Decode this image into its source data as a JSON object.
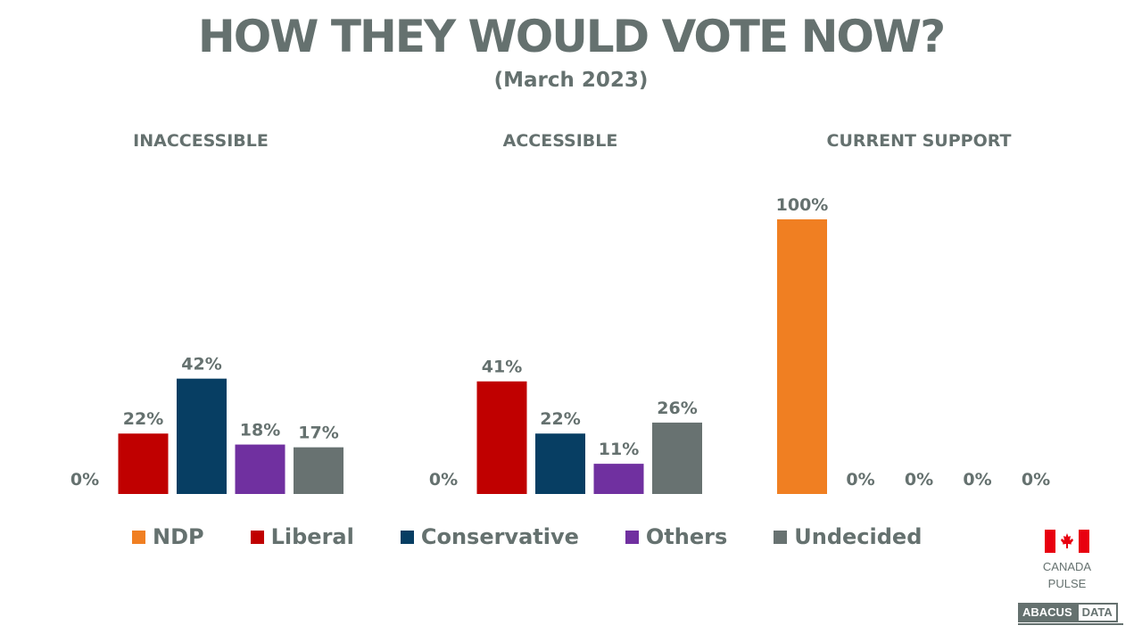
{
  "title": "HOW THEY WOULD VOTE NOW?",
  "subtitle": "(March 2023)",
  "colors": {
    "NDP": "#f07f22",
    "Liberal": "#c00000",
    "Conservative": "#073e63",
    "Others": "#7030a0",
    "Undecided": "#687271",
    "text": "#65716f"
  },
  "chart_data": {
    "type": "bar",
    "categories": [
      "NDP",
      "Liberal",
      "Conservative",
      "Others",
      "Undecided"
    ],
    "ylim": [
      0,
      100
    ],
    "panels": [
      {
        "title": "INACCESSIBLE",
        "values": [
          0,
          22,
          42,
          18,
          17
        ],
        "labels": [
          "0%",
          "22%",
          "42%",
          "18%",
          "17%"
        ]
      },
      {
        "title": "ACCESSIBLE",
        "values": [
          0,
          41,
          22,
          11,
          26
        ],
        "labels": [
          "0%",
          "41%",
          "22%",
          "11%",
          "26%"
        ]
      },
      {
        "title": "CURRENT SUPPORT",
        "values": [
          100,
          0,
          0,
          0,
          0
        ],
        "labels": [
          "100%",
          "0%",
          "0%",
          "0%",
          "0%"
        ]
      }
    ],
    "legend": [
      "NDP",
      "Liberal",
      "Conservative",
      "Others",
      "Undecided"
    ],
    "legend_position": "bottom"
  },
  "branding": {
    "pulse_line1": "CANADA",
    "pulse_line2": "PULSE",
    "abacus_left": "ABACUS",
    "abacus_right": "DATA"
  }
}
